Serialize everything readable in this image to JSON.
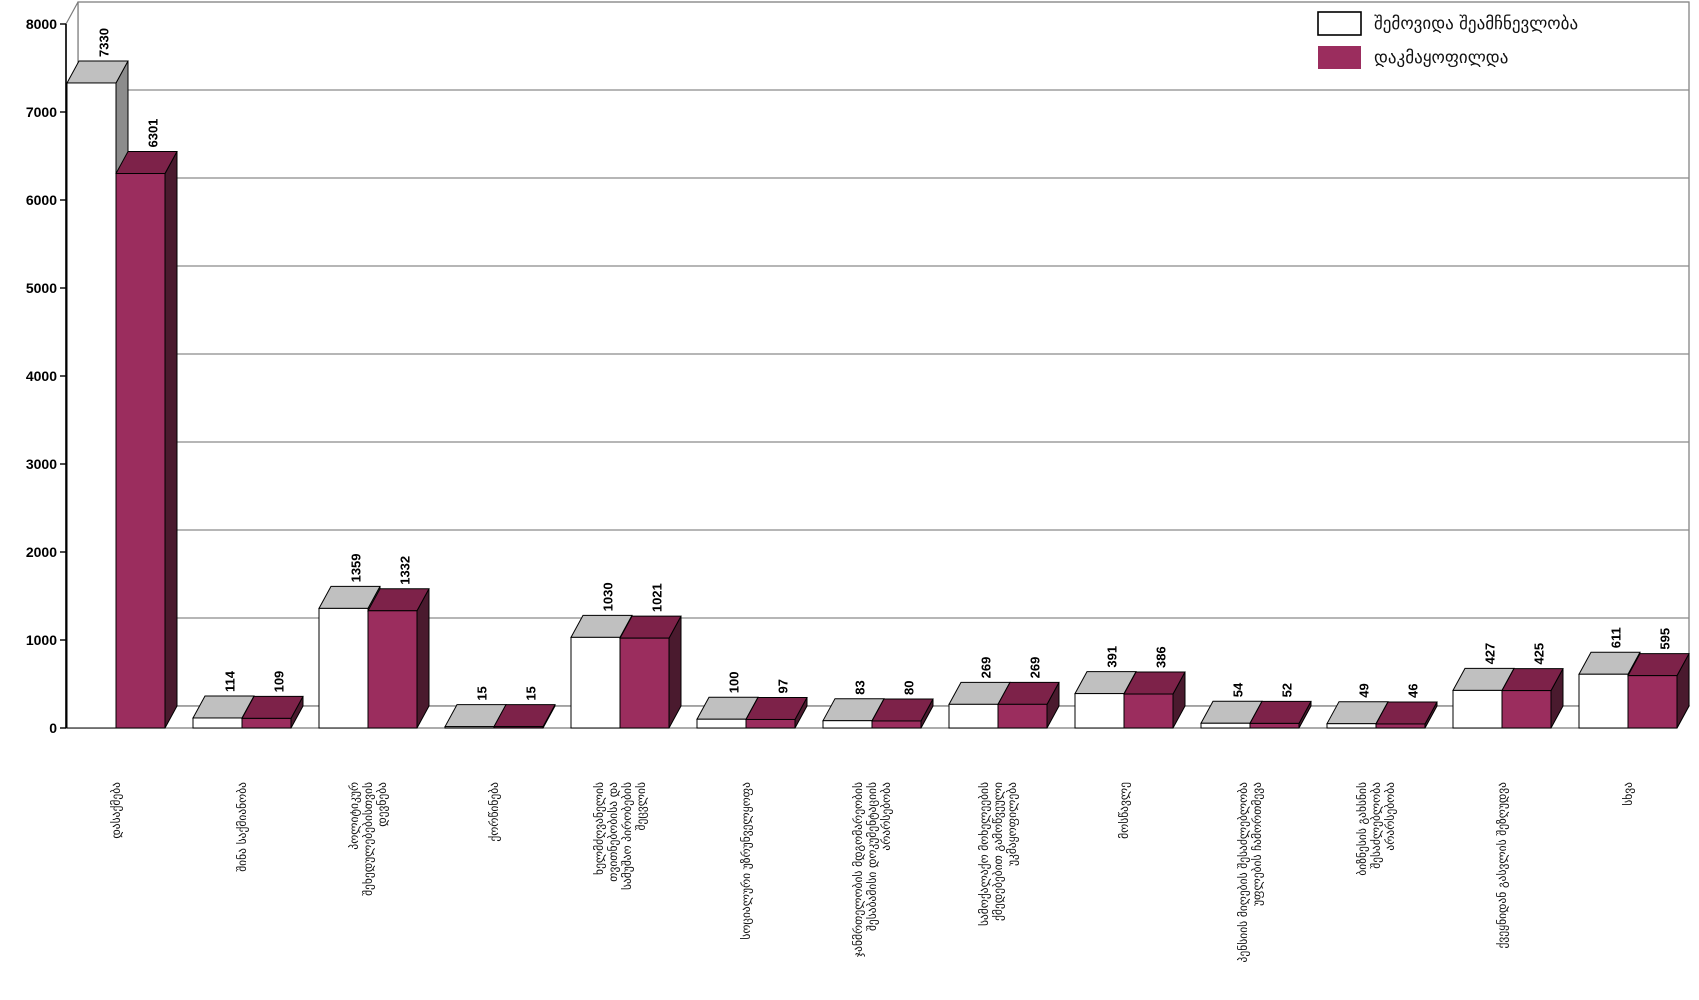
{
  "chart_data": {
    "type": "bar",
    "title": "",
    "xlabel": "",
    "ylabel": "",
    "ylim": [
      0,
      8000
    ],
    "yticks": [
      0,
      1000,
      2000,
      3000,
      4000,
      5000,
      6000,
      7000,
      8000
    ],
    "grid": true,
    "legend_position": "top-right",
    "categories": [
      [
        "დასაქმება"
      ],
      [
        "შინა საქმიანობა"
      ],
      [
        "პოლიტიკურ",
        "შეხედულებებისთვის",
        "დევნება"
      ],
      [
        "ქორწინება"
      ],
      [
        "ხელმძღვანელის",
        "თვითნებობისა და",
        "სამუშაო პირობების",
        "შეცვლის"
      ],
      [
        "სოციალური უზრუნველყოფა"
      ],
      [
        "ჯანმრთელობის მდგომარეობის",
        "შესაბამისი დოკუმენტაციის",
        "არარსებობა"
      ],
      [
        "სამოქალაქო მოხელეების",
        "ქმედებებით გამოწვეული",
        "უკმაყოფილება"
      ],
      [
        "მოსწავლე"
      ],
      [
        "პენსიის მიღების შესაძლებლობა",
        "უფლების ჩამორთმევა"
      ],
      [
        "ბიზნესის გახსნის",
        "შესაძლებლობა",
        "არარსებობა"
      ],
      [
        "ქვეყნიდან გასვლის შეზღუდვა"
      ],
      [
        "სხვა"
      ]
    ],
    "series": [
      {
        "name": "შემოვიდა შეამჩნევლობა",
        "color": "#ffffff",
        "top_color": "#c0c0c0",
        "side_color": "#8c8c8c",
        "values": [
          7330,
          114,
          1359,
          15,
          1030,
          100,
          83,
          269,
          391,
          54,
          49,
          427,
          611
        ]
      },
      {
        "name": "დაკმაყოფილდა",
        "color": "#9b2d5e",
        "top_color": "#7d2249",
        "side_color": "#4a1a2e",
        "values": [
          6301,
          109,
          1332,
          15,
          1021,
          97,
          80,
          269,
          386,
          52,
          46,
          425,
          595
        ]
      }
    ],
    "value_labels": [
      [
        "7330",
        "114",
        "1359",
        "15",
        "1030",
        "100",
        "83",
        "269",
        "391",
        "54",
        "49",
        "427",
        "611"
      ],
      [
        "6301",
        "109",
        "1332",
        "15",
        "1021",
        "97",
        "80",
        "269",
        "386",
        "52",
        "46",
        "425",
        "595"
      ]
    ],
    "ytick_labels": [
      "0",
      "1000",
      "2000",
      "3000",
      "4000",
      "5000",
      "6000",
      "7000",
      "8000"
    ]
  },
  "legend": {
    "items": [
      "შემოვიდა შეამჩნევლობა",
      "დაკმაყოფილდა"
    ]
  }
}
